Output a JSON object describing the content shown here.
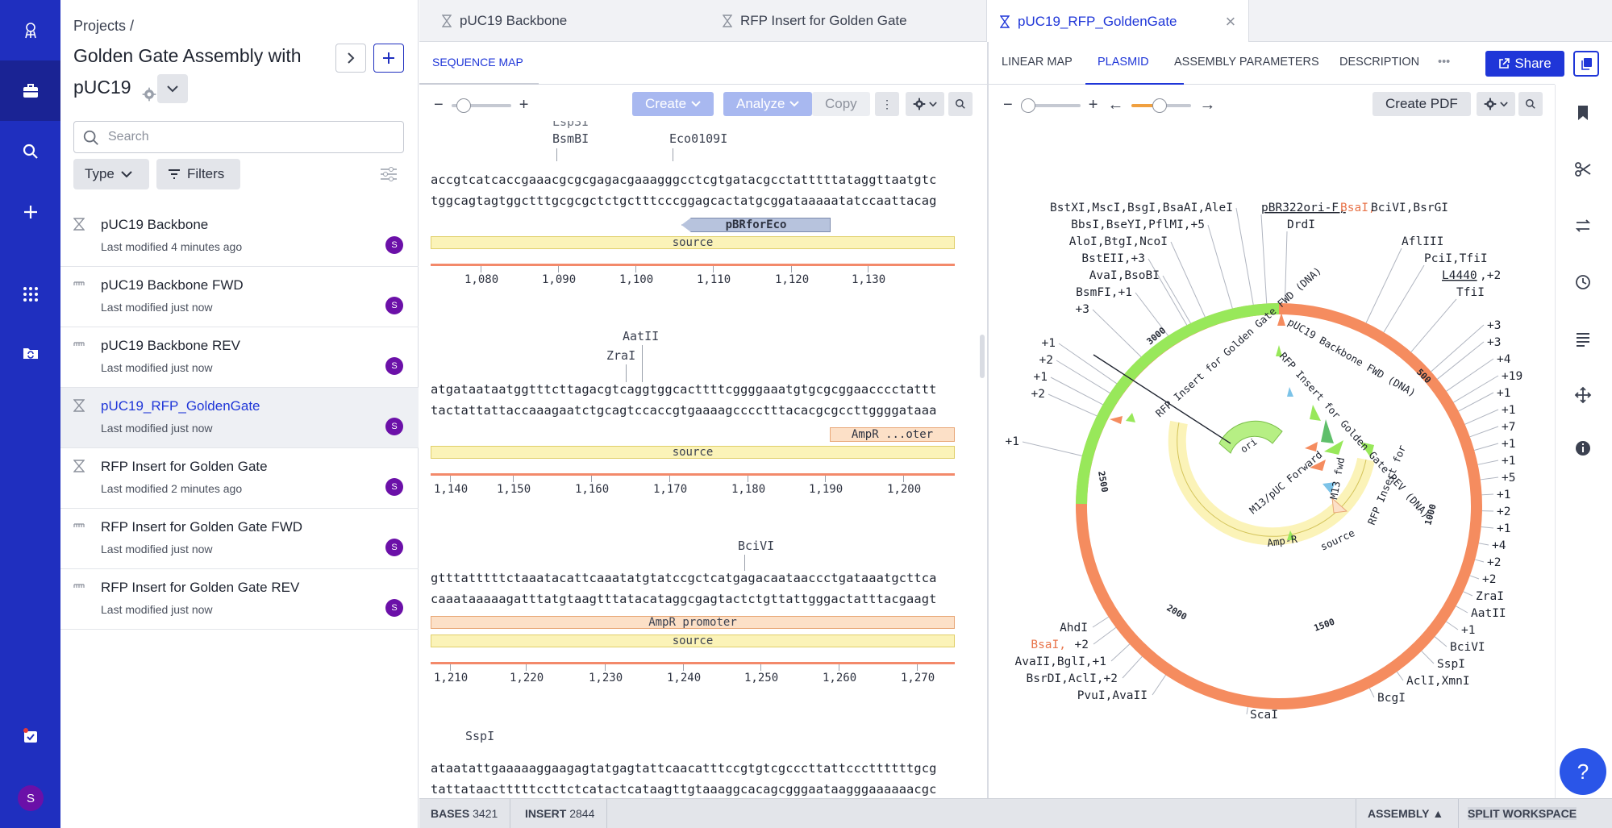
{
  "rail": {
    "avatar_letter": "S",
    "icons": [
      "logo-icon",
      "briefcase-icon",
      "search-icon",
      "plus-icon",
      "apps-grid-icon",
      "folder-sync-icon",
      "tasks-icon"
    ]
  },
  "project": {
    "breadcrumb": "Projects /",
    "title": "Golden Gate Assembly with pUC19",
    "search_placeholder": "Search",
    "type_chip": "Type",
    "filters_chip": "Filters",
    "items": [
      {
        "name": "pUC19 Backbone",
        "modified": "Last modified 4 minutes ago",
        "avatar": "S",
        "kind": "hourglass"
      },
      {
        "name": "pUC19 Backbone FWD",
        "modified": "Last modified just now",
        "avatar": "S",
        "kind": "oligo"
      },
      {
        "name": "pUC19 Backbone REV",
        "modified": "Last modified just now",
        "avatar": "S",
        "kind": "oligo"
      },
      {
        "name": "pUC19_RFP_GoldenGate",
        "modified": "Last modified just now",
        "avatar": "S",
        "kind": "hourglass"
      },
      {
        "name": "RFP Insert for Golden Gate",
        "modified": "Last modified 2 minutes ago",
        "avatar": "S",
        "kind": "hourglass"
      },
      {
        "name": "RFP Insert for Golden Gate FWD",
        "modified": "Last modified just now",
        "avatar": "S",
        "kind": "oligo"
      },
      {
        "name": "RFP Insert for Golden Gate REV",
        "modified": "Last modified just now",
        "avatar": "S",
        "kind": "oligo"
      }
    ]
  },
  "tabs": [
    "pUC19 Backbone",
    "RFP Insert for Golden Gate",
    "pUC19_RFP_GoldenGate"
  ],
  "seq": {
    "subtab": "SEQUENCE MAP",
    "create": "Create",
    "analyze": "Analyze",
    "copy": "Copy",
    "blocks": [
      {
        "enzymes": [
          {
            "label": "Lsp3I"
          },
          {
            "label": "BsmBI"
          },
          {
            "label": "Eco0109I"
          }
        ],
        "top": "accgtcatcaccgaaacgcgcgagacgaaagggcctcgtgatacgcctatttttataggttaatgtc",
        "bottom": "tggcagtagtggctttgcgcgctctgctttcccggagcactatgcggataaaaatatccaattacag",
        "primer": "pBRforEco",
        "feature": "source",
        "ticks": [
          "1,080",
          "1,090",
          "1,100",
          "1,110",
          "1,120",
          "1,130"
        ]
      },
      {
        "enzymes": [
          {
            "label": "AatII"
          },
          {
            "label": "ZraI"
          }
        ],
        "top": "atgataataatggtttcttagacgtcaggtggcacttttcggggaaatgtgcgcggaacccctattt",
        "bottom": "tactattattaccaaagaatctgcagtccaccgtgaaaagcccctttacacgcgccttggggataaa",
        "ampr": "AmpR ...oter",
        "feature": "source",
        "ticks": [
          "1,140",
          "1,150",
          "1,160",
          "1,170",
          "1,180",
          "1,190",
          "1,200"
        ]
      },
      {
        "enzymes": [
          {
            "label": "BciVI"
          }
        ],
        "top": "gtttatttttctaaatacattcaaatatgtatccgctcatgagacaataaccctgataaatgcttca",
        "bottom": "caaataaaaagatttatgtaagtttatacataggcgagtactctgttattgggactatttacgaagt",
        "promoter": "AmpR promoter",
        "feature": "source",
        "ticks": [
          "1,210",
          "1,220",
          "1,230",
          "1,240",
          "1,250",
          "1,260",
          "1,270"
        ]
      },
      {
        "enzymes": [
          {
            "label": "SspI"
          }
        ],
        "top": "ataatattgaaaaaggaagagtatgagtattcaacatttccgtgtcgcccttattcccttttttgcg",
        "bottom": "tattataactttttccttctcatactcataagttgtaaaggcacagcgggaataagggaaaaaacgc"
      }
    ]
  },
  "map": {
    "tabs": [
      "LINEAR MAP",
      "PLASMID",
      "ASSEMBLY PARAMETERS",
      "DESCRIPTION"
    ],
    "share": "Share",
    "create_pdf": "Create PDF",
    "ring_ticks": [
      "500",
      "1000",
      "1500",
      "2000",
      "2500",
      "3000"
    ],
    "inner_labels": [
      "pUC19 Backbone FWD (DNA)",
      "RFP Insert for Golden Gate FWD (DNA)",
      "RFP Insert for Golden Gate REV (DNA)",
      "RFP Insert for",
      "M13 fwd",
      "M13/pUC Forward",
      "Amp-R",
      "source",
      "ori"
    ],
    "left_labels": [
      "BstXI,MscI,BsgI,BsaAI,AleI",
      "BbsI,BseYI,PflMI,+5",
      "AloI,BtgI,NcoI",
      "BstEII,+3",
      "AvaI,BsoBI",
      "BsmFI,+1",
      "+3",
      "+1",
      "+2",
      "+1",
      "+2",
      "+1"
    ],
    "top_right_labels": [
      "pBR322ori-F,",
      "BsaI,",
      "BciVI,BsrGI",
      "DrdI",
      "AflIII",
      "PciI,TfiI",
      "L4440",
      ",+2",
      "TfiI"
    ],
    "right_labels": [
      "+3",
      "+3",
      "+4",
      "+19",
      "+1",
      "+1",
      "+7",
      "+1",
      "+1",
      "+5",
      "+1",
      "+2",
      "+1",
      "+4",
      "+2",
      "+2",
      "ZraI",
      "AatII",
      "+1",
      "BciVI",
      "SspI",
      "AclI,XmnI",
      "BcgI",
      "ScaI"
    ],
    "bottom_left_labels": [
      "AhdI",
      "BsaI,",
      "+2",
      "AvaII,BglI,+1",
      "BsrDI,AclI,+2",
      "PvuI,AvaII"
    ],
    "colors": {
      "backbone": "#f58c5f",
      "insert": "#98e85a",
      "source": "#fbf3b8",
      "ori": "#b6ef84",
      "accent": "#1f36d8",
      "bsai": "#e8744a"
    }
  },
  "status": {
    "bases_label": "BASES",
    "bases": "3421",
    "insert_label": "INSERT",
    "insert": "2844",
    "assembly": "ASSEMBLY",
    "split": "SPLIT WORKSPACE"
  },
  "help": "?"
}
